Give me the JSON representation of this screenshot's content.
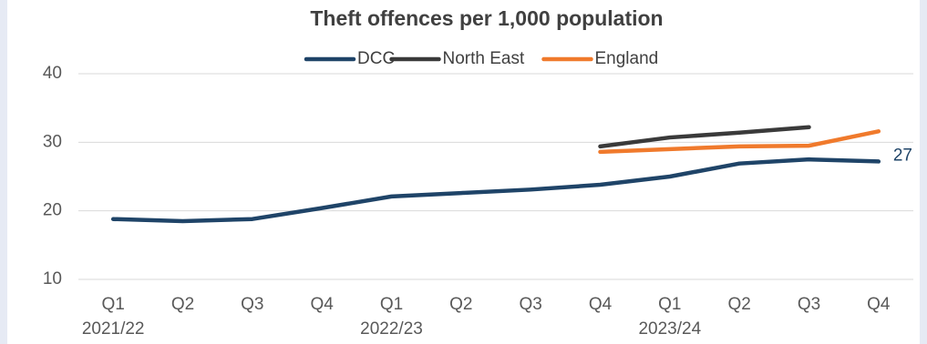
{
  "chart_data": {
    "type": "line",
    "title": "Theft offences per 1,000 population",
    "categories": [
      "Q1",
      "Q2",
      "Q3",
      "Q4",
      "Q1",
      "Q2",
      "Q3",
      "Q4",
      "Q1",
      "Q2",
      "Q3",
      "Q4"
    ],
    "category_groups": [
      "2021/22",
      null,
      null,
      null,
      "2022/23",
      null,
      null,
      null,
      "2023/24",
      null,
      null,
      null
    ],
    "series": [
      {
        "name": "DCC",
        "color": "#1f4468",
        "values": [
          18.8,
          18.5,
          18.8,
          20.4,
          22.1,
          22.6,
          23.1,
          23.8,
          25.0,
          26.9,
          27.5,
          27.2
        ],
        "value_labels": [
          null,
          null,
          null,
          null,
          null,
          null,
          null,
          null,
          null,
          null,
          null,
          "27"
        ]
      },
      {
        "name": "North East",
        "color": "#3a3a3a",
        "values": [
          null,
          null,
          null,
          null,
          null,
          null,
          null,
          29.4,
          30.7,
          31.4,
          32.2,
          null
        ]
      },
      {
        "name": "England",
        "color": "#f07a2c",
        "values": [
          null,
          null,
          null,
          null,
          null,
          null,
          null,
          28.6,
          29.0,
          29.4,
          29.5,
          31.6
        ]
      }
    ],
    "ylim": [
      10,
      40
    ],
    "yticks": [
      10,
      20,
      30,
      40
    ],
    "grid": true,
    "legend": "top"
  }
}
